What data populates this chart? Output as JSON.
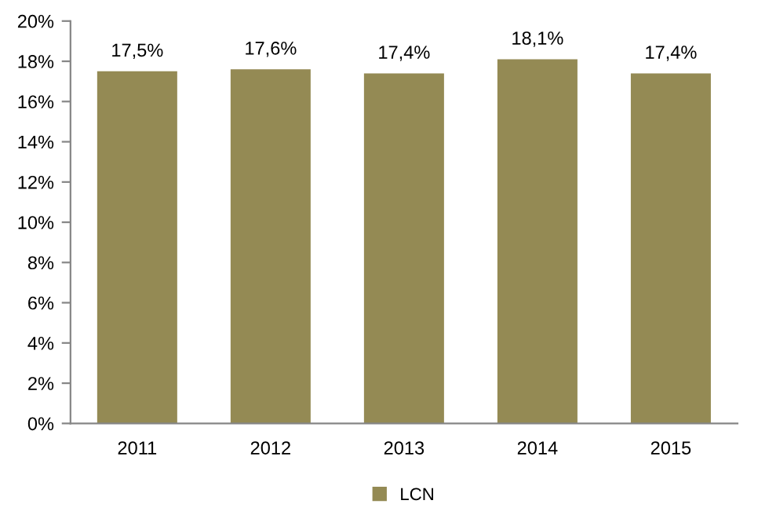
{
  "chart_data": {
    "type": "bar",
    "categories": [
      "2011",
      "2012",
      "2013",
      "2014",
      "2015"
    ],
    "series": [
      {
        "name": "LCN",
        "color": "#948a54",
        "values": [
          17.5,
          17.6,
          17.4,
          18.1,
          17.4
        ],
        "value_labels": [
          "17,5%",
          "17,6%",
          "17,4%",
          "18,1%",
          "17,4%"
        ]
      }
    ],
    "ylim": [
      0,
      20
    ],
    "yticks": [
      {
        "value": 0,
        "label": "0%"
      },
      {
        "value": 2,
        "label": "2%"
      },
      {
        "value": 4,
        "label": "4%"
      },
      {
        "value": 6,
        "label": "6%"
      },
      {
        "value": 8,
        "label": "8%"
      },
      {
        "value": 10,
        "label": "10%"
      },
      {
        "value": 12,
        "label": "12%"
      },
      {
        "value": 14,
        "label": "14%"
      },
      {
        "value": 16,
        "label": "16%"
      },
      {
        "value": 18,
        "label": "18%"
      },
      {
        "value": 20,
        "label": "20%"
      }
    ],
    "legend": "bottom"
  }
}
